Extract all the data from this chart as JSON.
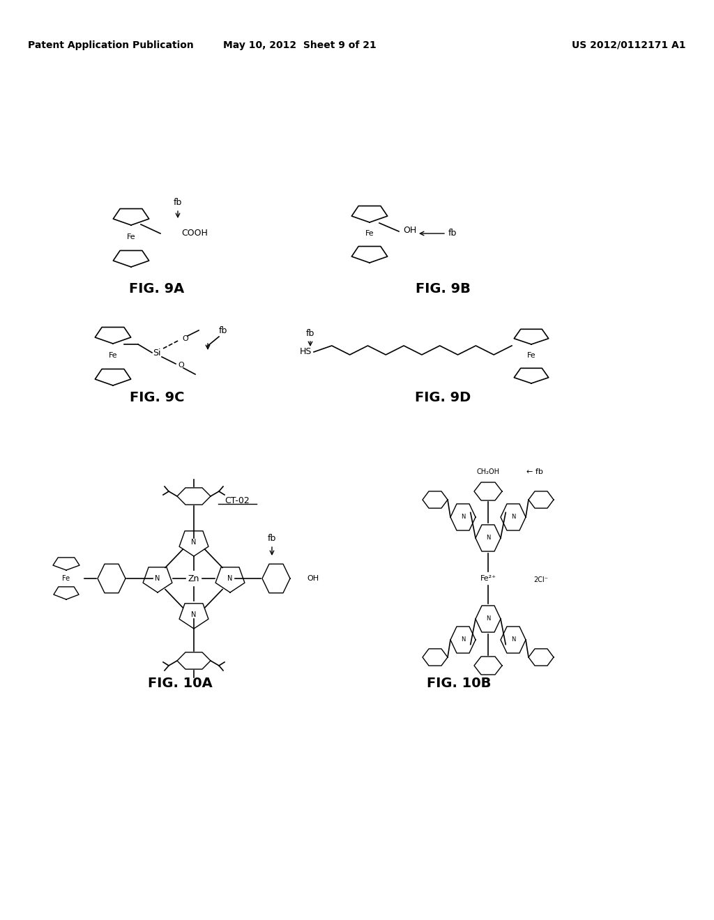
{
  "bg_color": "#ffffff",
  "header_left": "Patent Application Publication",
  "header_mid": "May 10, 2012  Sheet 9 of 21",
  "header_right": "US 2012/0112171 A1",
  "fig_labels": [
    "FIG. 9A",
    "FIG. 9B",
    "FIG. 9C",
    "FIG. 9D",
    "FIG. 10A",
    "FIG. 10B"
  ],
  "fig_label_positions_x": [
    225,
    635,
    225,
    635,
    258,
    658
  ],
  "fig_label_positions_y": [
    415,
    415,
    570,
    570,
    980,
    980
  ],
  "fig_label_fontsize": 14
}
